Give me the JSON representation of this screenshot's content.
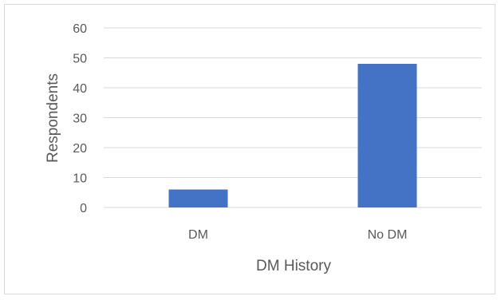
{
  "chart_data": {
    "type": "bar",
    "title": "",
    "categories": [
      "DM",
      "No DM"
    ],
    "values": [
      6,
      48
    ],
    "xlabel": "DM History",
    "ylabel": "Respondents",
    "ylim": [
      0,
      60
    ],
    "yticks": [
      0,
      10,
      20,
      30,
      40,
      50,
      60
    ],
    "grid": true,
    "legend": "none",
    "colors": {
      "bar": "#4472C4",
      "grid": "#d9d9d9",
      "text": "#595959"
    }
  }
}
